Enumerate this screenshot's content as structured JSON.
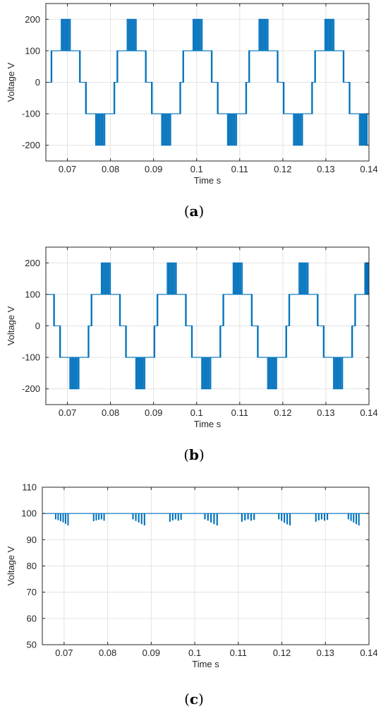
{
  "chart_data": [
    {
      "type": "line",
      "xlabel": "Time s",
      "ylabel": "Voltage V",
      "caption": {
        "open": "(",
        "letter": "a",
        "close": ")"
      },
      "xlim": [
        0.065,
        0.14
      ],
      "ylim": [
        -250,
        250
      ],
      "xticks": [
        0.07,
        0.08,
        0.09,
        0.1,
        0.11,
        0.12,
        0.13,
        0.14
      ],
      "xtick_labels": [
        "0.07",
        "0.08",
        "0.09",
        "0.1",
        "0.11",
        "0.12",
        "0.13",
        "0.14"
      ],
      "yticks": [
        -200,
        -100,
        0,
        100,
        200
      ],
      "ytick_labels": [
        "-200",
        "-100",
        "0",
        "100",
        "200"
      ],
      "grid": true,
      "line_color": "#0072BD",
      "waveform": {
        "period": 0.02,
        "phase_start": 0.0655,
        "levels": [
          0,
          100,
          200,
          100,
          0,
          -100,
          -200,
          -100
        ],
        "level_durations": [
          0.0007,
          0.0023,
          0.002,
          0.0023,
          0.0014,
          0.0023,
          0.002,
          0.0023
        ]
      }
    },
    {
      "type": "line",
      "xlabel": "Time s",
      "ylabel": "Voltage V",
      "caption": {
        "open": "(",
        "letter": "b",
        "close": ")"
      },
      "xlim": [
        0.065,
        0.14
      ],
      "ylim": [
        -250,
        250
      ],
      "xticks": [
        0.07,
        0.08,
        0.09,
        0.1,
        0.11,
        0.12,
        0.13,
        0.14
      ],
      "xtick_labels": [
        "0.07",
        "0.08",
        "0.09",
        "0.1",
        "0.11",
        "0.12",
        "0.13",
        "0.14"
      ],
      "yticks": [
        -200,
        -100,
        0,
        100,
        200
      ],
      "ytick_labels": [
        "-200",
        "-100",
        "0",
        "100",
        "200"
      ],
      "grid": true,
      "line_color": "#0072BD",
      "waveform": {
        "period": 0.02,
        "phase_start": 0.0595,
        "levels": [
          0,
          100,
          200,
          100,
          0,
          -100,
          -200,
          -100
        ],
        "level_durations": [
          0.0007,
          0.0023,
          0.002,
          0.0023,
          0.0014,
          0.0023,
          0.002,
          0.0023
        ]
      }
    },
    {
      "type": "line",
      "xlabel": "Time s",
      "ylabel": "Voltage V",
      "caption": {
        "open": "(",
        "letter": "c",
        "close": ")"
      },
      "xlim": [
        0.065,
        0.14
      ],
      "ylim": [
        50,
        110
      ],
      "xticks": [
        0.07,
        0.08,
        0.09,
        0.1,
        0.11,
        0.12,
        0.13,
        0.14
      ],
      "xtick_labels": [
        "0.07",
        "0.08",
        "0.09",
        "0.1",
        "0.11",
        "0.12",
        "0.13",
        "0.14"
      ],
      "yticks": [
        50,
        60,
        70,
        80,
        90,
        100,
        110
      ],
      "ytick_labels": [
        "50",
        "60",
        "70",
        "80",
        "90",
        "100",
        "110"
      ],
      "grid": true,
      "line_color": "#0072BD",
      "dc_level": 100,
      "dip_groups": [
        {
          "start": 0.0678,
          "end": 0.0712,
          "dips": [
            97.9,
            97.6,
            97.2,
            96.8,
            96.2,
            95.6
          ]
        },
        {
          "start": 0.0765,
          "end": 0.0795,
          "dips": [
            97.2,
            97.5,
            97.7,
            97.9,
            97.4
          ]
        },
        {
          "start": 0.0855,
          "end": 0.0888,
          "dips": [
            97.9,
            97.3,
            96.7,
            96.1,
            95.6
          ]
        },
        {
          "start": 0.094,
          "end": 0.0972,
          "dips": [
            97.0,
            97.5,
            97.9,
            97.4,
            97.7
          ]
        },
        {
          "start": 0.102,
          "end": 0.1055,
          "dips": [
            97.9,
            97.4,
            96.7,
            96.1,
            95.6
          ]
        },
        {
          "start": 0.1105,
          "end": 0.114,
          "dips": [
            97.0,
            97.5,
            97.9,
            97.4,
            97.7
          ]
        },
        {
          "start": 0.119,
          "end": 0.1222,
          "dips": [
            97.9,
            97.3,
            96.6,
            96.0,
            95.6
          ]
        },
        {
          "start": 0.1275,
          "end": 0.1308,
          "dips": [
            97.0,
            97.5,
            97.9,
            97.4,
            97.7
          ]
        },
        {
          "start": 0.135,
          "end": 0.138,
          "dips": [
            97.9,
            97.3,
            96.7,
            96.1,
            95.6
          ]
        }
      ]
    }
  ]
}
